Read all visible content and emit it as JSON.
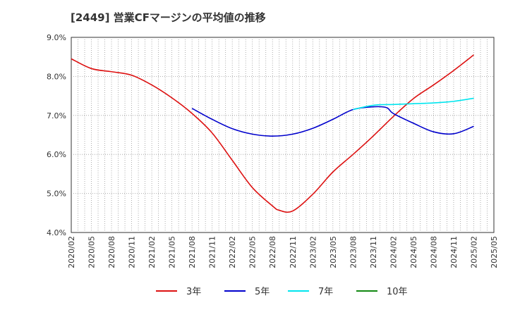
{
  "chart_data": {
    "type": "line",
    "title": "[2449]  営業CFマージンの平均値の推移",
    "xlabel": "",
    "ylabel": "",
    "ylim": [
      4.0,
      9.0
    ],
    "yticks": [
      "4.0%",
      "5.0%",
      "6.0%",
      "7.0%",
      "8.0%",
      "9.0%"
    ],
    "y_tick_values": [
      4.0,
      5.0,
      6.0,
      7.0,
      8.0,
      9.0
    ],
    "x_tick_labels": [
      "2020/02",
      "2020/05",
      "2020/08",
      "2020/11",
      "2021/02",
      "2021/05",
      "2021/08",
      "2021/11",
      "2022/02",
      "2022/05",
      "2022/08",
      "2022/11",
      "2023/02",
      "2023/05",
      "2023/08",
      "2023/11",
      "2024/02",
      "2024/05",
      "2024/08",
      "2024/11",
      "2025/02",
      "2025/05"
    ],
    "grid": true,
    "legend_position": "bottom",
    "series": [
      {
        "name": "3年",
        "color": "#dd1111",
        "x": [
          "2020/02",
          "2020/05",
          "2020/08",
          "2020/11",
          "2021/02",
          "2021/05",
          "2021/08",
          "2021/11",
          "2022/02",
          "2022/05",
          "2022/08",
          "2022/09",
          "2022/11",
          "2023/02",
          "2023/05",
          "2023/08",
          "2023/11",
          "2024/02",
          "2024/05",
          "2024/08",
          "2024/11",
          "2025/02"
        ],
        "values": [
          8.45,
          8.2,
          8.12,
          8.03,
          7.78,
          7.45,
          7.05,
          6.55,
          5.85,
          5.15,
          4.68,
          4.57,
          4.55,
          4.98,
          5.55,
          6.0,
          6.47,
          6.97,
          7.43,
          7.78,
          8.15,
          8.55
        ]
      },
      {
        "name": "5年",
        "color": "#0000cc",
        "x": [
          "2021/08",
          "2021/11",
          "2022/02",
          "2022/05",
          "2022/08",
          "2022/11",
          "2023/02",
          "2023/05",
          "2023/08",
          "2023/11",
          "2024/01",
          "2024/02",
          "2024/05",
          "2024/08",
          "2024/11",
          "2025/02"
        ],
        "values": [
          7.18,
          6.9,
          6.66,
          6.52,
          6.47,
          6.52,
          6.67,
          6.9,
          7.15,
          7.22,
          7.2,
          7.05,
          6.8,
          6.58,
          6.53,
          6.72
        ]
      },
      {
        "name": "7年",
        "color": "#00e5ee",
        "x": [
          "2023/08",
          "2023/11",
          "2024/02",
          "2024/05",
          "2024/08",
          "2024/11",
          "2025/02"
        ],
        "values": [
          7.15,
          7.26,
          7.28,
          7.3,
          7.32,
          7.36,
          7.44
        ]
      },
      {
        "name": "10年",
        "color": "#118811",
        "x": [],
        "values": []
      }
    ]
  }
}
